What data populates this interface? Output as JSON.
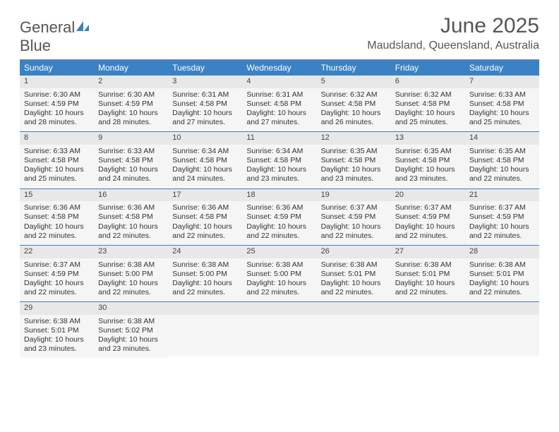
{
  "logo": {
    "text_a": "General",
    "text_b": "Blue",
    "gray": "#6b6b6b",
    "blue": "#3b82c4"
  },
  "title": "June 2025",
  "location": "Maudsland, Queensland, Australia",
  "header_bg": "#3b82c4",
  "header_fg": "#ffffff",
  "cell_num_bg": "#e8e8e8",
  "cell_body_bg": "#f5f5f5",
  "week_border": "#3b82c4",
  "day_names": [
    "Sunday",
    "Monday",
    "Tuesday",
    "Wednesday",
    "Thursday",
    "Friday",
    "Saturday"
  ],
  "days": [
    {
      "n": "1",
      "sunrise": "6:30 AM",
      "sunset": "4:59 PM",
      "dl": "10 hours and 28 minutes."
    },
    {
      "n": "2",
      "sunrise": "6:30 AM",
      "sunset": "4:59 PM",
      "dl": "10 hours and 28 minutes."
    },
    {
      "n": "3",
      "sunrise": "6:31 AM",
      "sunset": "4:58 PM",
      "dl": "10 hours and 27 minutes."
    },
    {
      "n": "4",
      "sunrise": "6:31 AM",
      "sunset": "4:58 PM",
      "dl": "10 hours and 27 minutes."
    },
    {
      "n": "5",
      "sunrise": "6:32 AM",
      "sunset": "4:58 PM",
      "dl": "10 hours and 26 minutes."
    },
    {
      "n": "6",
      "sunrise": "6:32 AM",
      "sunset": "4:58 PM",
      "dl": "10 hours and 25 minutes."
    },
    {
      "n": "7",
      "sunrise": "6:33 AM",
      "sunset": "4:58 PM",
      "dl": "10 hours and 25 minutes."
    },
    {
      "n": "8",
      "sunrise": "6:33 AM",
      "sunset": "4:58 PM",
      "dl": "10 hours and 25 minutes."
    },
    {
      "n": "9",
      "sunrise": "6:33 AM",
      "sunset": "4:58 PM",
      "dl": "10 hours and 24 minutes."
    },
    {
      "n": "10",
      "sunrise": "6:34 AM",
      "sunset": "4:58 PM",
      "dl": "10 hours and 24 minutes."
    },
    {
      "n": "11",
      "sunrise": "6:34 AM",
      "sunset": "4:58 PM",
      "dl": "10 hours and 23 minutes."
    },
    {
      "n": "12",
      "sunrise": "6:35 AM",
      "sunset": "4:58 PM",
      "dl": "10 hours and 23 minutes."
    },
    {
      "n": "13",
      "sunrise": "6:35 AM",
      "sunset": "4:58 PM",
      "dl": "10 hours and 23 minutes."
    },
    {
      "n": "14",
      "sunrise": "6:35 AM",
      "sunset": "4:58 PM",
      "dl": "10 hours and 22 minutes."
    },
    {
      "n": "15",
      "sunrise": "6:36 AM",
      "sunset": "4:58 PM",
      "dl": "10 hours and 22 minutes."
    },
    {
      "n": "16",
      "sunrise": "6:36 AM",
      "sunset": "4:58 PM",
      "dl": "10 hours and 22 minutes."
    },
    {
      "n": "17",
      "sunrise": "6:36 AM",
      "sunset": "4:58 PM",
      "dl": "10 hours and 22 minutes."
    },
    {
      "n": "18",
      "sunrise": "6:36 AM",
      "sunset": "4:59 PM",
      "dl": "10 hours and 22 minutes."
    },
    {
      "n": "19",
      "sunrise": "6:37 AM",
      "sunset": "4:59 PM",
      "dl": "10 hours and 22 minutes."
    },
    {
      "n": "20",
      "sunrise": "6:37 AM",
      "sunset": "4:59 PM",
      "dl": "10 hours and 22 minutes."
    },
    {
      "n": "21",
      "sunrise": "6:37 AM",
      "sunset": "4:59 PM",
      "dl": "10 hours and 22 minutes."
    },
    {
      "n": "22",
      "sunrise": "6:37 AM",
      "sunset": "4:59 PM",
      "dl": "10 hours and 22 minutes."
    },
    {
      "n": "23",
      "sunrise": "6:38 AM",
      "sunset": "5:00 PM",
      "dl": "10 hours and 22 minutes."
    },
    {
      "n": "24",
      "sunrise": "6:38 AM",
      "sunset": "5:00 PM",
      "dl": "10 hours and 22 minutes."
    },
    {
      "n": "25",
      "sunrise": "6:38 AM",
      "sunset": "5:00 PM",
      "dl": "10 hours and 22 minutes."
    },
    {
      "n": "26",
      "sunrise": "6:38 AM",
      "sunset": "5:01 PM",
      "dl": "10 hours and 22 minutes."
    },
    {
      "n": "27",
      "sunrise": "6:38 AM",
      "sunset": "5:01 PM",
      "dl": "10 hours and 22 minutes."
    },
    {
      "n": "28",
      "sunrise": "6:38 AM",
      "sunset": "5:01 PM",
      "dl": "10 hours and 22 minutes."
    },
    {
      "n": "29",
      "sunrise": "6:38 AM",
      "sunset": "5:01 PM",
      "dl": "10 hours and 23 minutes."
    },
    {
      "n": "30",
      "sunrise": "6:38 AM",
      "sunset": "5:02 PM",
      "dl": "10 hours and 23 minutes."
    }
  ],
  "labels": {
    "sunrise": "Sunrise:",
    "sunset": "Sunset:",
    "daylight": "Daylight:"
  }
}
